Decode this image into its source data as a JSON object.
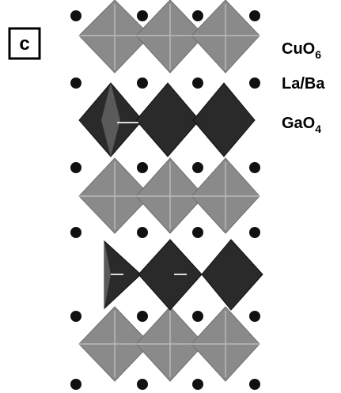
{
  "panel_label": "c",
  "labels": [
    {
      "text": "CuO",
      "subscript": "6"
    },
    {
      "text": "La/Ba"
    },
    {
      "text": "GaO",
      "subscript": "4"
    }
  ]
}
